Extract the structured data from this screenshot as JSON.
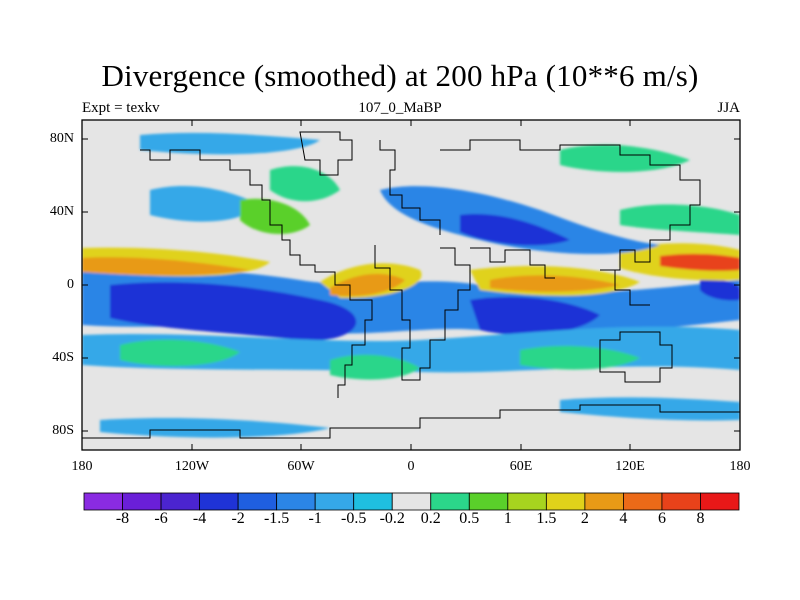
{
  "title": "Divergence (smoothed) at 200 hPa (10**6 m/s)",
  "left_string": "Expt = texkv",
  "center_string": "107_0_MaBP",
  "right_string": "JJA",
  "latitude_ticks": [
    "80N",
    "40N",
    "0",
    "40S",
    "80S"
  ],
  "longitude_ticks": [
    "180",
    "120W",
    "60W",
    "0",
    "60E",
    "120E",
    "180"
  ],
  "colorbar": {
    "labels": [
      "-8",
      "-6",
      "-4",
      "-2",
      "-1.5",
      "-1",
      "-0.5",
      "-0.2",
      "0.2",
      "0.5",
      "1",
      "1.5",
      "2",
      "4",
      "6",
      "8"
    ],
    "colors": [
      "#8a2be2",
      "#6a1fd8",
      "#4b24d0",
      "#1f33d6",
      "#1f5fe0",
      "#2b85e6",
      "#35a8e8",
      "#1fbfe0",
      "#e5e5e5",
      "#2bd68a",
      "#5ad02a",
      "#a7d41f",
      "#e0d21a",
      "#e89a16",
      "#ec6a18",
      "#e8421a",
      "#e81818"
    ]
  },
  "field_colors": {
    "background": "#e5e5e5",
    "strong_convergence": "#1f33d6",
    "convergence": "#2b85e6",
    "weak_convergence": "#35a8e8",
    "weak_divergence": "#2bd68a",
    "divergence": "#5ad02a",
    "moderate_divergence": "#e0d21a",
    "strong_divergence": "#e89a16",
    "very_strong_divergence": "#e8421a"
  }
}
